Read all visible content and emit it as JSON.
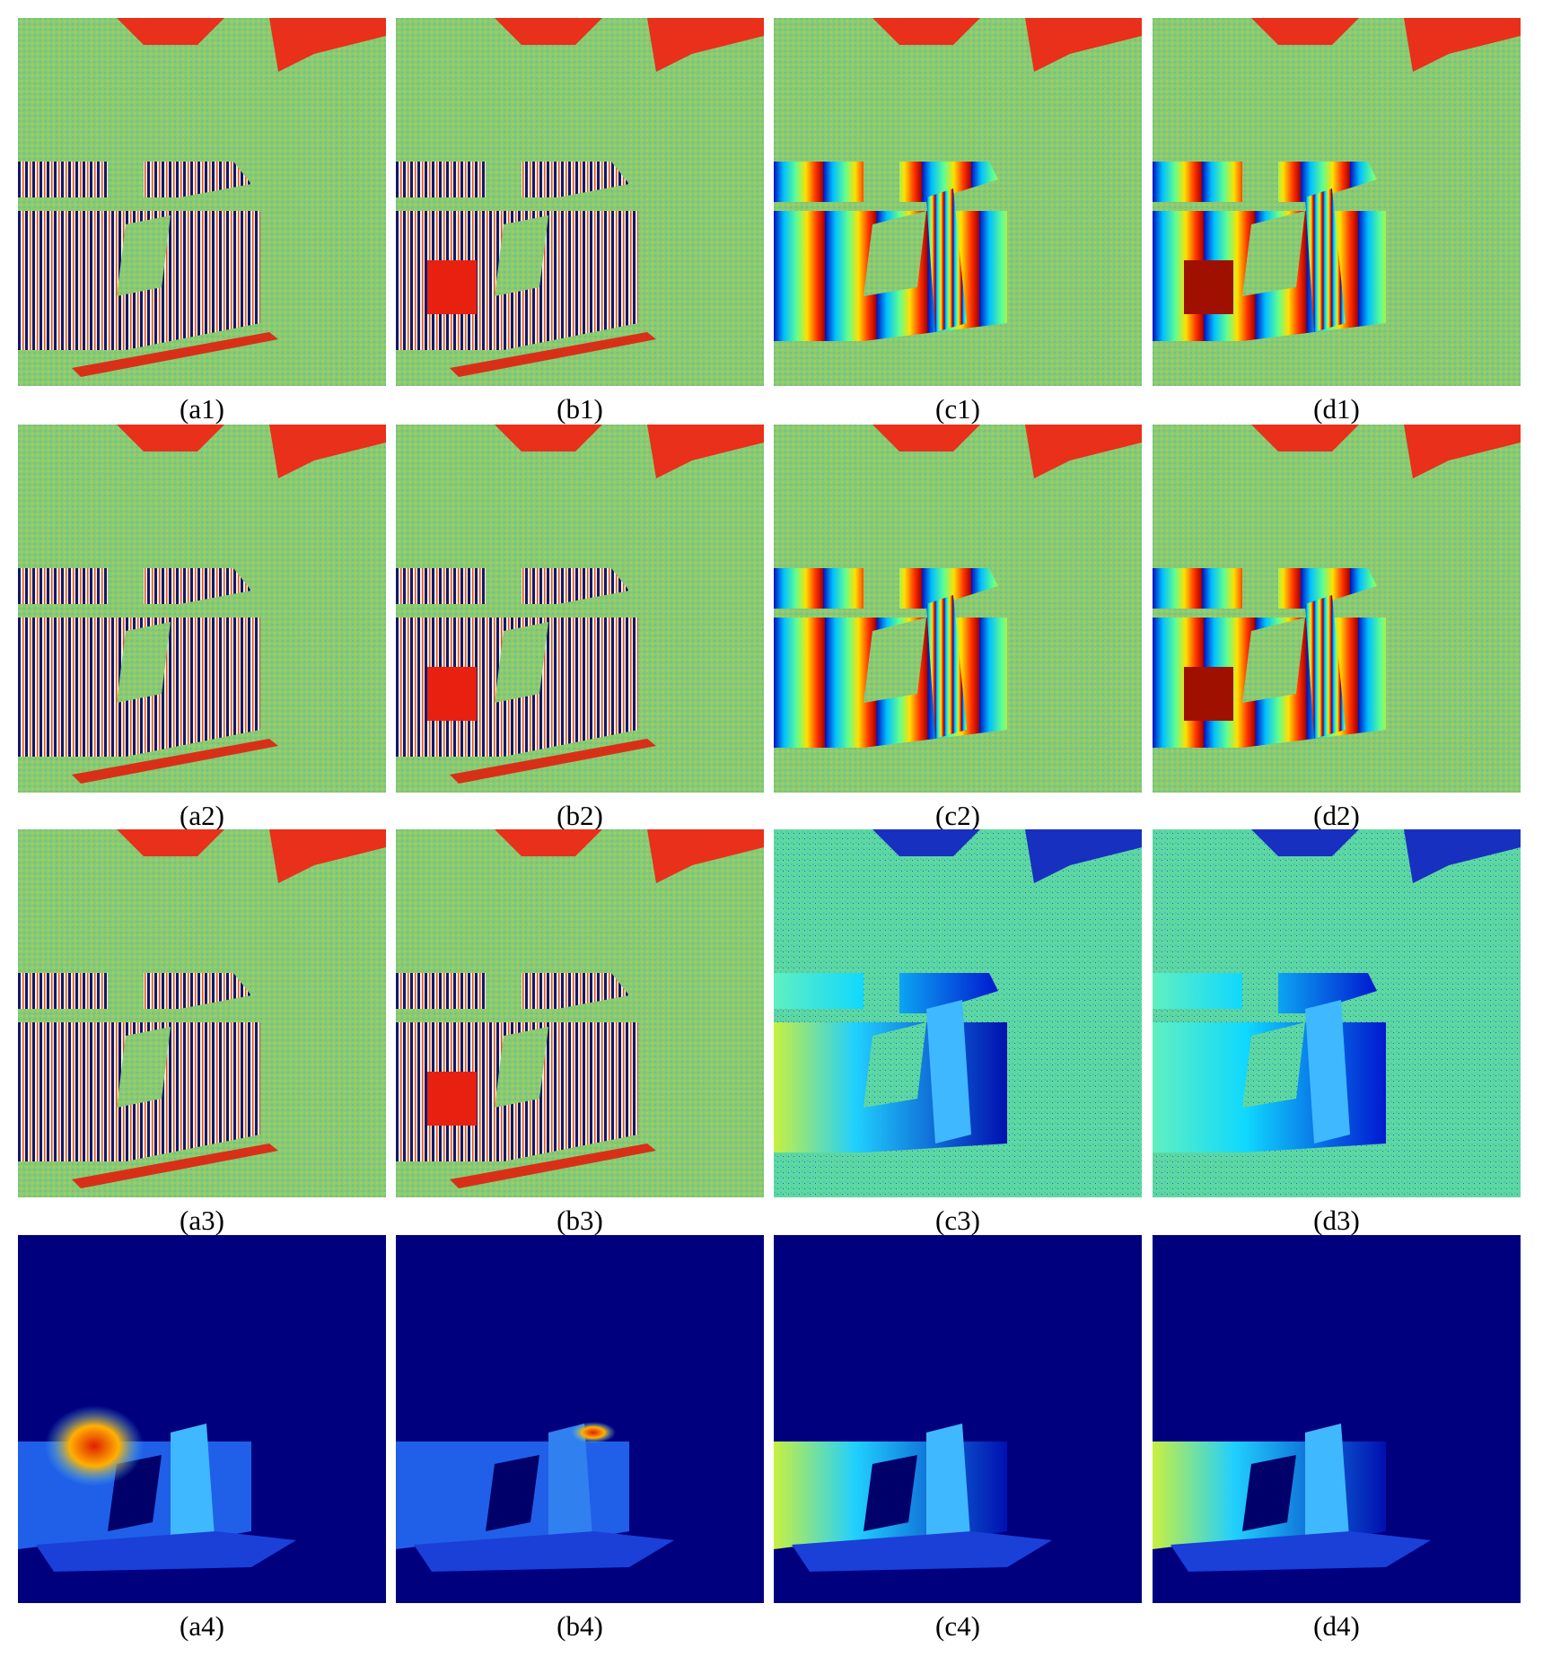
{
  "captions": [
    "(a1)",
    "(b1)",
    "(c1)",
    "(d1)",
    "(a2)",
    "(b2)",
    "(c2)",
    "(d2)",
    "(a3)",
    "(b3)",
    "(c3)",
    "(d3)",
    "(a4)",
    "(b4)",
    "(c4)",
    "(d4)"
  ]
}
